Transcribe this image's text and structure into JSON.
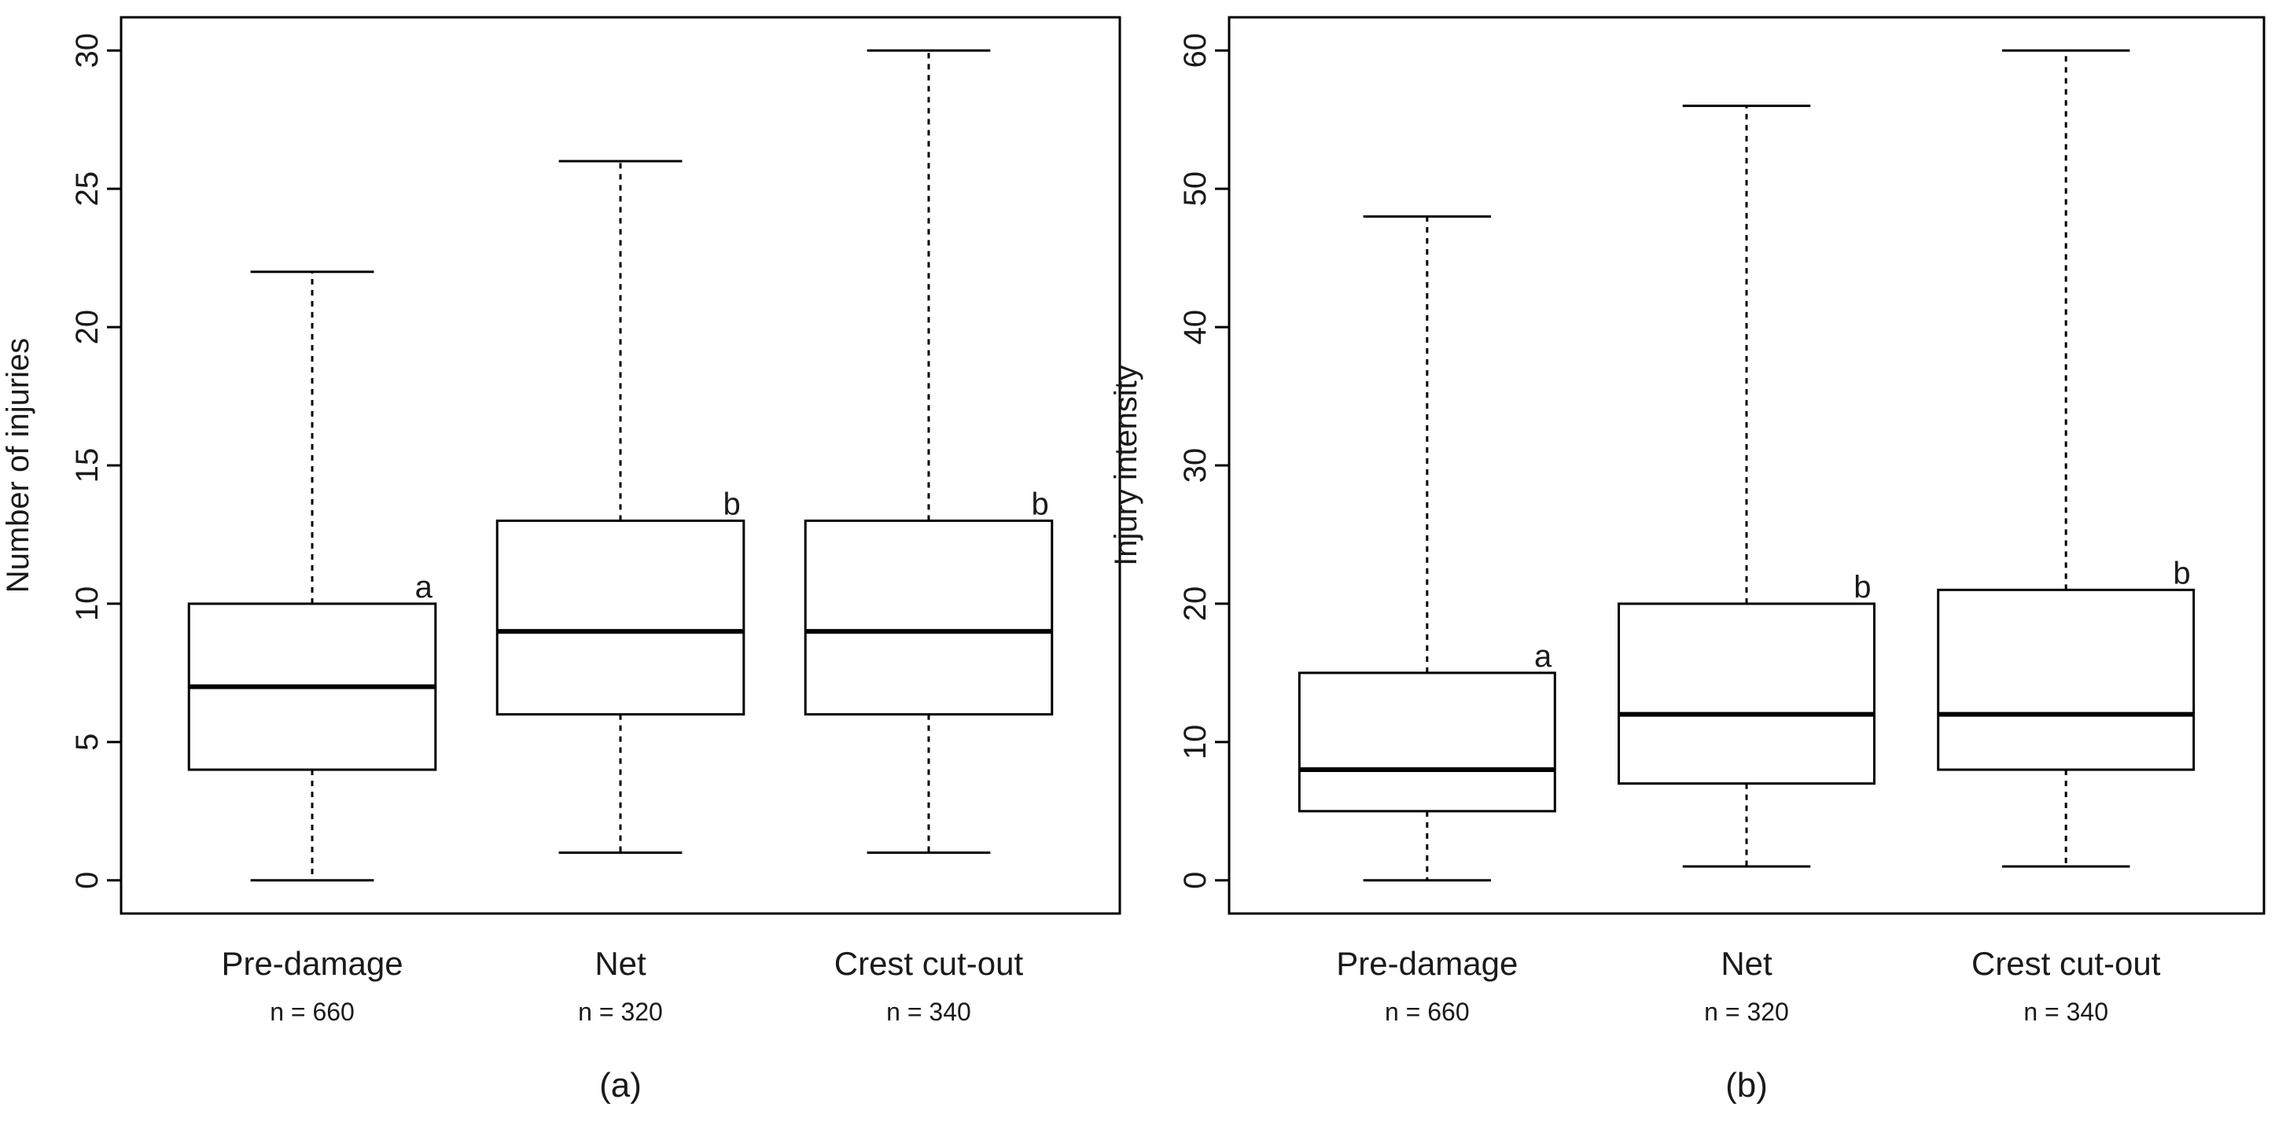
{
  "chart_data": [
    {
      "type": "box",
      "y_label": "Number of injuries",
      "caption": "(a)",
      "categories": [
        "Pre-damage",
        "Net",
        "Crest cut-out"
      ],
      "sample_sizes": [
        "n = 660",
        "n = 320",
        "n = 340"
      ],
      "letters": [
        "a",
        "b",
        "b"
      ],
      "min": [
        0,
        1,
        1
      ],
      "q1": [
        4,
        6,
        6
      ],
      "median": [
        7,
        9,
        9
      ],
      "q3": [
        10,
        13,
        13
      ],
      "max": [
        22,
        26,
        30
      ],
      "ylim": [
        -1.2,
        31.2
      ],
      "yticks": [
        0,
        5,
        10,
        15,
        20,
        25,
        30
      ],
      "color": "#000000"
    },
    {
      "type": "box",
      "y_label": "Injury intensity",
      "caption": "(b)",
      "categories": [
        "Pre-damage",
        "Net",
        "Crest cut-out"
      ],
      "sample_sizes": [
        "n = 660",
        "n = 320",
        "n = 340"
      ],
      "letters": [
        "a",
        "b",
        "b"
      ],
      "min": [
        0,
        1,
        1
      ],
      "q1": [
        5,
        7,
        8
      ],
      "median": [
        8,
        12,
        12
      ],
      "q3": [
        15,
        20,
        21
      ],
      "max": [
        48,
        56,
        60
      ],
      "ylim": [
        -2.4,
        62.4
      ],
      "yticks": [
        0,
        10,
        20,
        30,
        40,
        50,
        60
      ],
      "color": "#000000"
    }
  ]
}
